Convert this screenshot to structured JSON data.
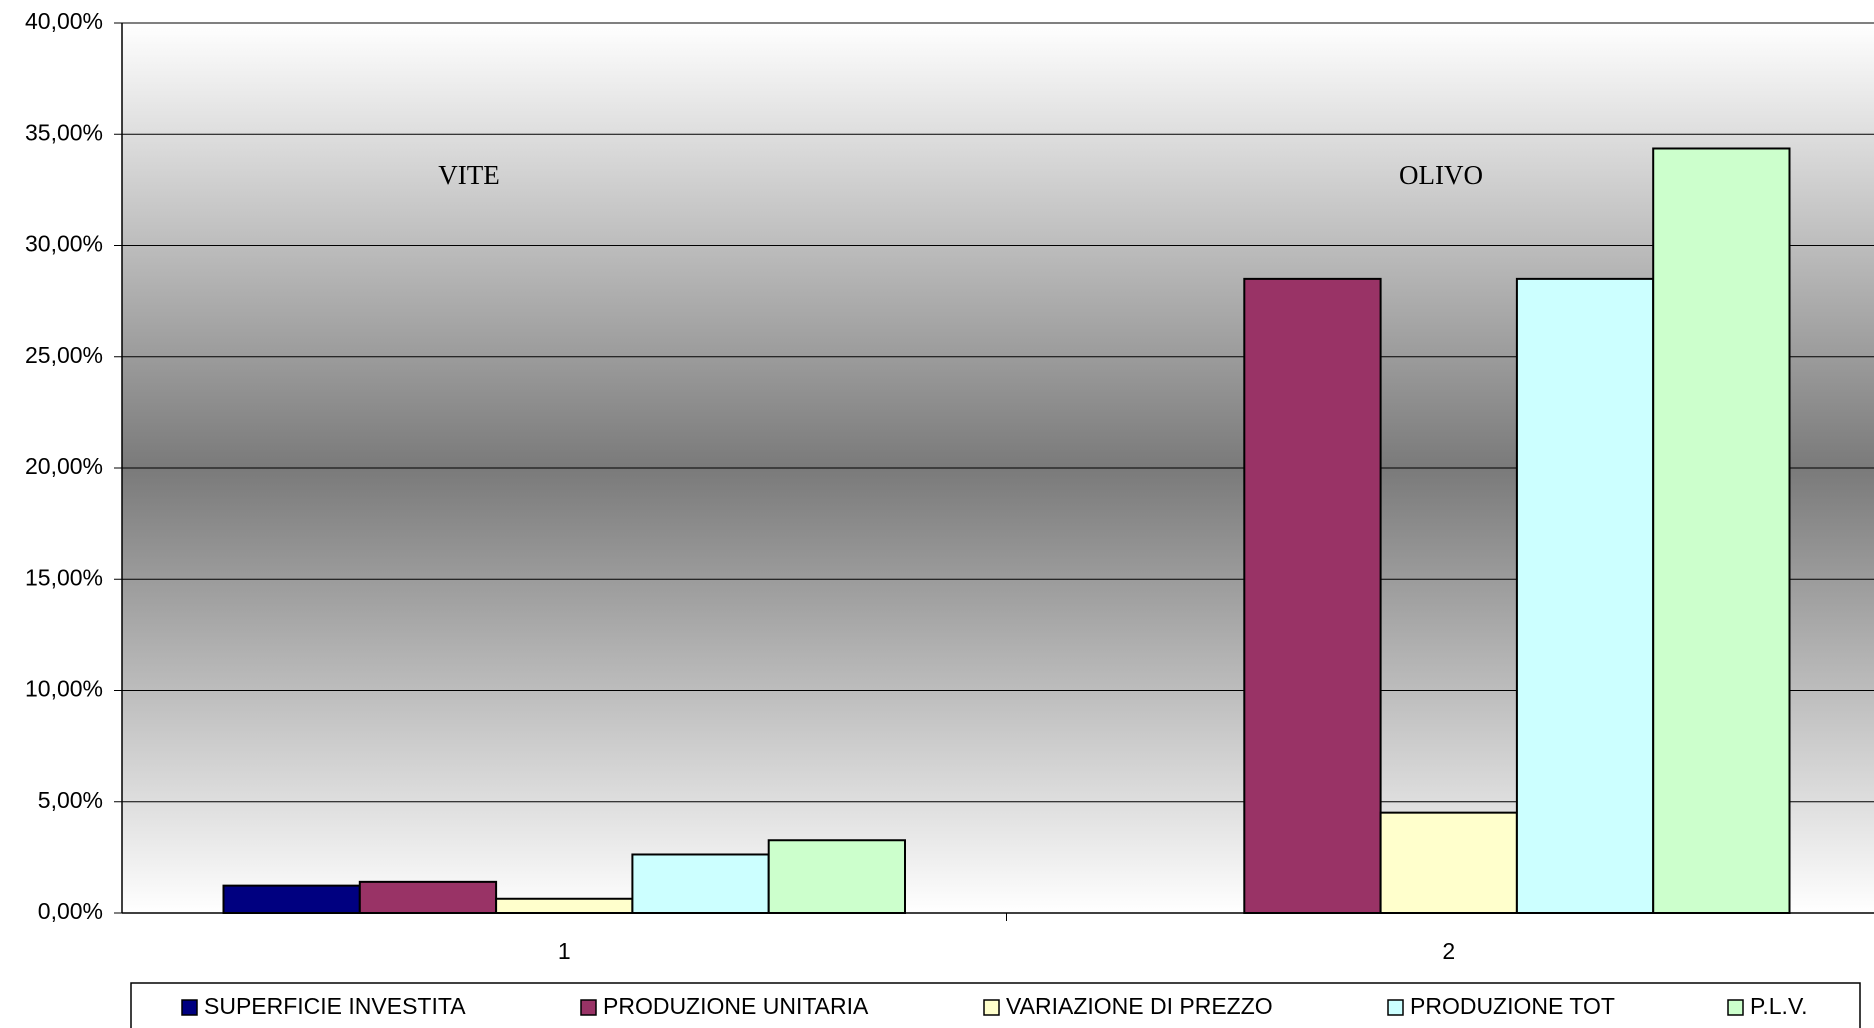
{
  "chart_data": {
    "type": "bar",
    "categories": [
      "1",
      "2"
    ],
    "series": [
      {
        "name": "SUPERFICIE INVESTITA",
        "color": "#000080",
        "values": [
          1.23,
          0
        ]
      },
      {
        "name": "PRODUZIONE UNITARIA",
        "color": "#993366",
        "values": [
          1.4,
          28.5
        ]
      },
      {
        "name": "VARIAZIONE DI PREZZO",
        "color": "#FFFFCC",
        "values": [
          0.64,
          4.51
        ]
      },
      {
        "name": "PRODUZIONE TOT",
        "color": "#CCFFFF",
        "values": [
          2.63,
          28.5
        ]
      },
      {
        "name": "P.L.V.",
        "color": "#CCFFCC",
        "values": [
          3.27,
          34.36
        ]
      }
    ],
    "annotations": [
      "VITE",
      "OLIVO"
    ],
    "ylim": [
      0,
      40
    ],
    "yticks": [
      {
        "value": 0,
        "label": "0,00%"
      },
      {
        "value": 5,
        "label": "5,00%"
      },
      {
        "value": 10,
        "label": "10,00%"
      },
      {
        "value": 15,
        "label": "15,00%"
      },
      {
        "value": 20,
        "label": "20,00%"
      },
      {
        "value": 25,
        "label": "25,00%"
      },
      {
        "value": 30,
        "label": "30,00%"
      },
      {
        "value": 35,
        "label": "35,00%"
      },
      {
        "value": 40,
        "label": "40,00%"
      }
    ],
    "grid": true,
    "legend": "bottom"
  }
}
